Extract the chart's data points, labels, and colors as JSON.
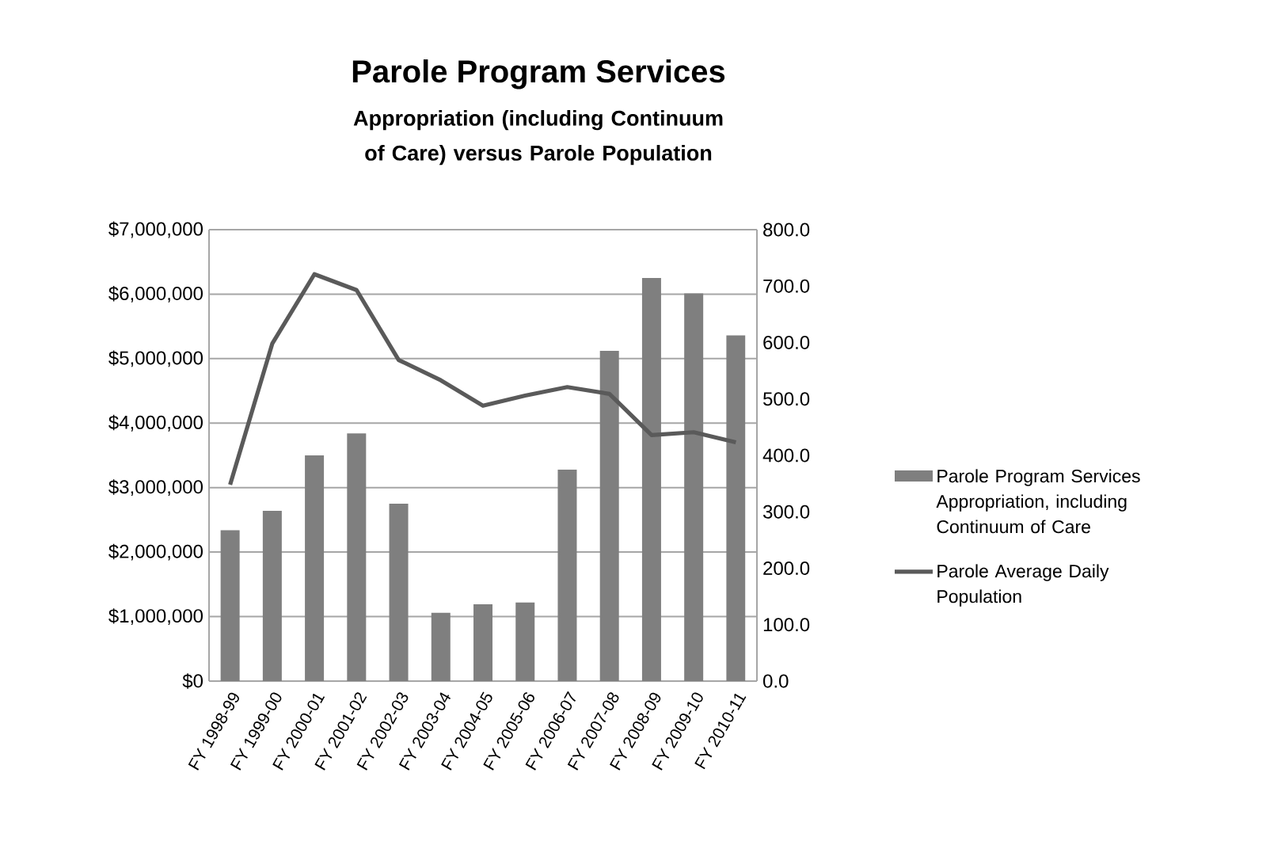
{
  "chart_data": {
    "type": "bar",
    "title": "Parole Program Services",
    "subtitle": "Appropriation (including Continuum of Care) versus Parole Population",
    "categories": [
      "FY 1998-99",
      "FY 1999-00",
      "FY 2000-01",
      "FY 2001-02",
      "FY 2002-03",
      "FY 2003-04",
      "FY 2004-05",
      "FY 2005-06",
      "FY 2006-07",
      "FY 2007-08",
      "FY 2008-09",
      "FY 2009-10",
      "FY 2010-11"
    ],
    "series": [
      {
        "name": "Parole Program Services Appropriation, including Continuum of Care",
        "color": "#7f7f7f",
        "values": [
          2340000,
          2640000,
          3500000,
          3840000,
          2750000,
          1060000,
          1190000,
          1220000,
          3280000,
          5120000,
          6250000,
          6010000,
          5360000
        ]
      },
      {
        "name": "Parole Average Daily Population",
        "type": "line",
        "axis": "y2",
        "color": "#5a5a5a",
        "values": [
          348,
          598,
          721,
          693,
          569,
          533,
          488,
          506,
          521,
          509,
          436,
          441,
          423
        ]
      }
    ],
    "ylim": [
      0,
      7000000
    ],
    "yticks": [
      {
        "value": 0,
        "label": "$0"
      },
      {
        "value": 1000000,
        "label": "$1,000,000"
      },
      {
        "value": 2000000,
        "label": "$2,000,000"
      },
      {
        "value": 3000000,
        "label": "$3,000,000"
      },
      {
        "value": 4000000,
        "label": "$4,000,000"
      },
      {
        "value": 5000000,
        "label": "$5,000,000"
      },
      {
        "value": 6000000,
        "label": "$6,000,000"
      },
      {
        "value": 7000000,
        "label": "$7,000,000"
      }
    ],
    "y2lim": [
      0,
      800
    ],
    "y2ticks": [
      {
        "value": 0,
        "label": "0.0"
      },
      {
        "value": 100,
        "label": "100.0"
      },
      {
        "value": 200,
        "label": "200.0"
      },
      {
        "value": 300,
        "label": "300.0"
      },
      {
        "value": 400,
        "label": "400.0"
      },
      {
        "value": 500,
        "label": "500.0"
      },
      {
        "value": 600,
        "label": "600.0"
      },
      {
        "value": 700,
        "label": "700.0"
      },
      {
        "value": 800,
        "label": "800.0"
      }
    ],
    "grid": "y",
    "legend": "right",
    "marker": "none",
    "line_style": "solid"
  }
}
